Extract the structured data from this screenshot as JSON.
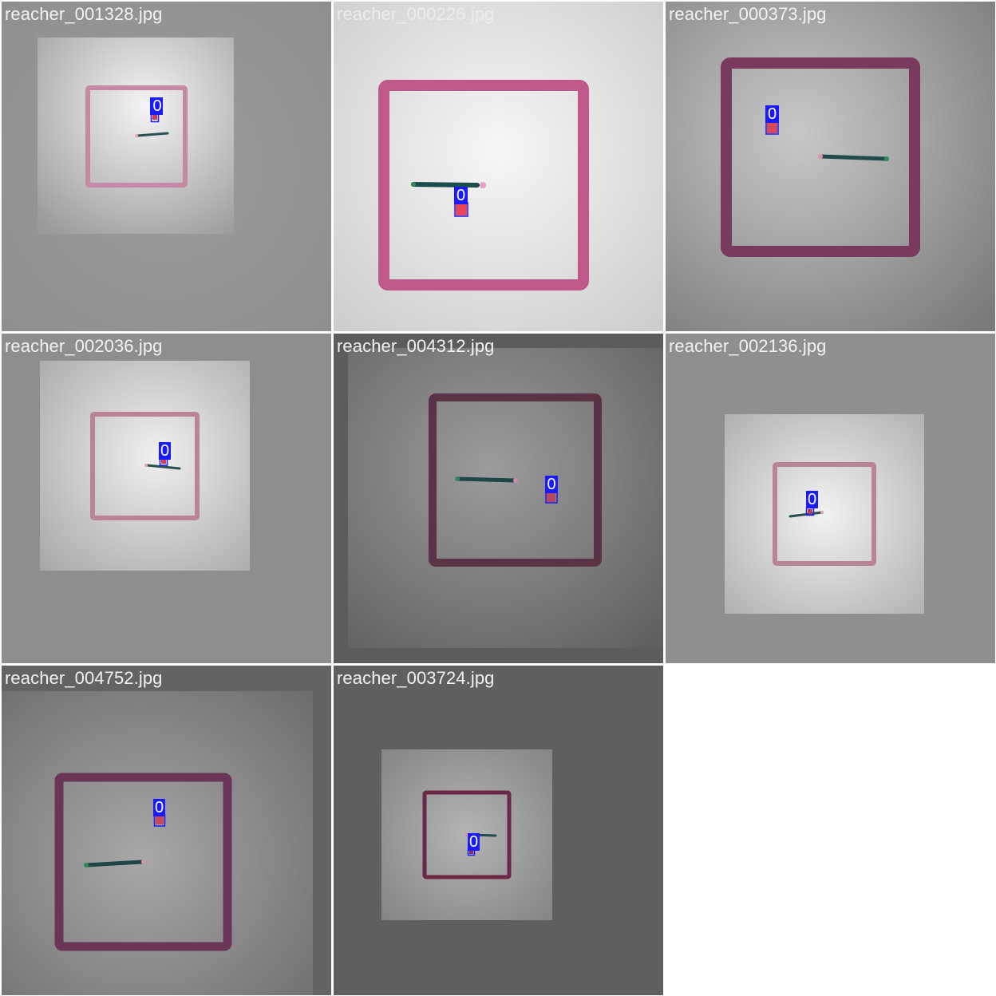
{
  "grid": {
    "tiles": [
      {
        "filename": "reacher_001328.jpg",
        "detections": [
          {
            "class_label": "0"
          }
        ]
      },
      {
        "filename": "reacher_000226.jpg",
        "detections": [
          {
            "class_label": "0"
          }
        ]
      },
      {
        "filename": "reacher_000373.jpg",
        "detections": [
          {
            "class_label": "0"
          }
        ]
      },
      {
        "filename": "reacher_002036.jpg",
        "detections": [
          {
            "class_label": "0"
          }
        ]
      },
      {
        "filename": "reacher_004312.jpg",
        "detections": [
          {
            "class_label": "0"
          }
        ]
      },
      {
        "filename": "reacher_002136.jpg",
        "detections": [
          {
            "class_label": "0"
          }
        ]
      },
      {
        "filename": "reacher_004752.jpg",
        "detections": [
          {
            "class_label": "0"
          }
        ]
      },
      {
        "filename": "reacher_003724.jpg",
        "detections": [
          {
            "class_label": "0"
          }
        ]
      }
    ]
  },
  "colors": {
    "detection_box": "#1a1aff",
    "label_text": "#ffffff",
    "arena_wall": "#b0567e",
    "arm": "#1d4a4a",
    "target": "#d23c5a",
    "empty_cell": "#ffffff"
  }
}
